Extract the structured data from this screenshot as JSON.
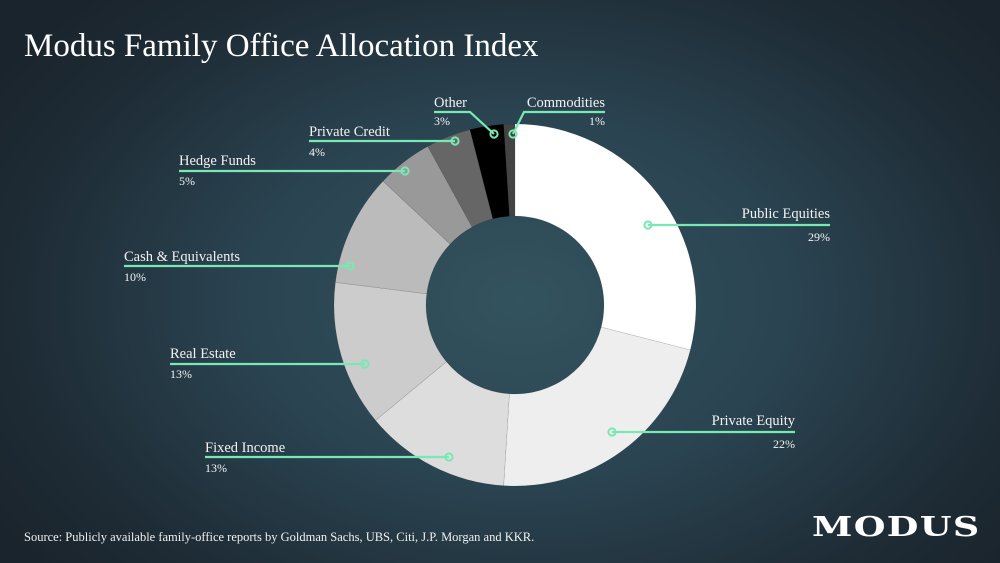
{
  "title": "Modus Family Office Allocation Index",
  "source": "Source: Publicly available family-office reports by Goldman Sachs, UBS, Citi, J.P. Morgan and KKR.",
  "logo": "MODUS",
  "colors": {
    "leader": "#78e8b4",
    "background": "#2a4350"
  },
  "chart_data": {
    "type": "pie",
    "donut": true,
    "unit": "%",
    "categories": [
      "Public Equities",
      "Private Equity",
      "Fixed Income",
      "Real Estate",
      "Cash & Equivalents",
      "Hedge Funds",
      "Private Credit",
      "Other",
      "Commodities"
    ],
    "values": [
      29,
      22,
      13,
      13,
      10,
      5,
      4,
      3,
      1
    ],
    "value_labels": [
      "29%",
      "22%",
      "13%",
      "13%",
      "10%",
      "5%",
      "4%",
      "3%",
      "1%"
    ],
    "slice_colors": [
      "#ffffff",
      "#eeeeee",
      "#dddddd",
      "#cccccc",
      "#bbbbbb",
      "#999999",
      "#666666",
      "#000000",
      "#444444"
    ]
  }
}
